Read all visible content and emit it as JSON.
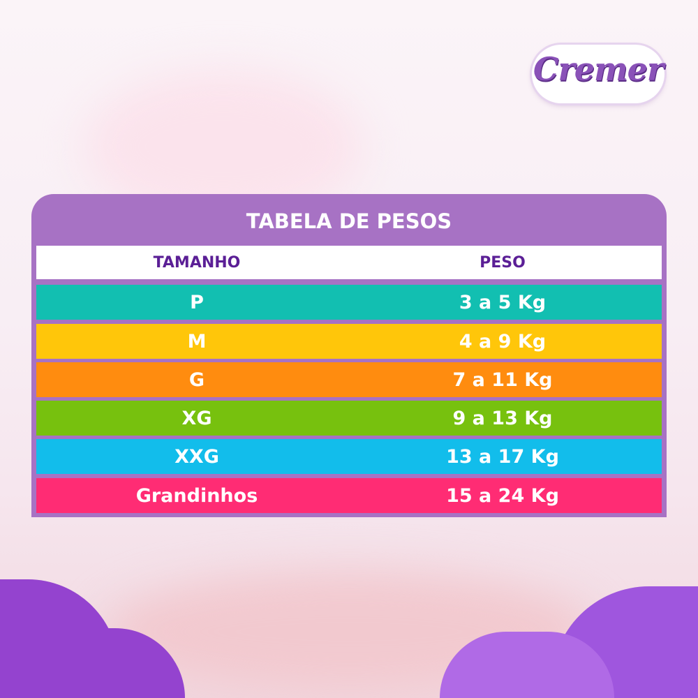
{
  "logo": {
    "text": "Cremer"
  },
  "table": {
    "title": "TABELA DE PESOS",
    "headers": [
      "TAMANHO",
      "PESO"
    ],
    "rows": [
      {
        "size": "P",
        "weight": "3 a 5 Kg",
        "color": "#12bfb1"
      },
      {
        "size": "M",
        "weight": "4 a 9 Kg",
        "color": "#ffc60a"
      },
      {
        "size": "G",
        "weight": "7 a 11 Kg",
        "color": "#ff8c0f"
      },
      {
        "size": "XG",
        "weight": "9 a 13 Kg",
        "color": "#77c10e"
      },
      {
        "size": "XXG",
        "weight": "13 a 17 Kg",
        "color": "#12bdeb"
      },
      {
        "size": "Grandinhos",
        "weight": "15 a 24 Kg",
        "color": "#ff2c74"
      }
    ]
  },
  "colors": {
    "frame": "#a772c4",
    "header_text": "#5b1f96",
    "cloud": "#9d4fd8"
  }
}
